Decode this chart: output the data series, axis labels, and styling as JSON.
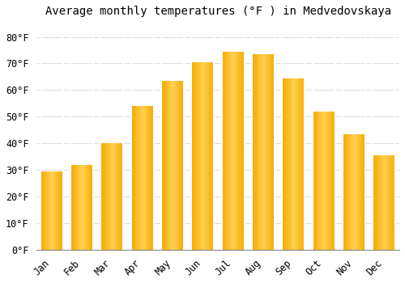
{
  "title": "Average monthly temperatures (°F ) in Medvedovskaya",
  "months": [
    "Jan",
    "Feb",
    "Mar",
    "Apr",
    "May",
    "Jun",
    "Jul",
    "Aug",
    "Sep",
    "Oct",
    "Nov",
    "Dec"
  ],
  "values": [
    29.5,
    32.0,
    40.0,
    54.0,
    63.5,
    70.5,
    74.5,
    73.5,
    64.5,
    52.0,
    43.5,
    35.5
  ],
  "bar_color_left": "#F5A800",
  "bar_color_mid": "#FFD050",
  "bar_color_right": "#F5A800",
  "background_color": "#FFFFFF",
  "grid_color": "#DDDDDD",
  "ylim": [
    0,
    85
  ],
  "yticks": [
    0,
    10,
    20,
    30,
    40,
    50,
    60,
    70,
    80
  ],
  "title_fontsize": 10,
  "tick_fontsize": 8.5,
  "bar_width": 0.75
}
